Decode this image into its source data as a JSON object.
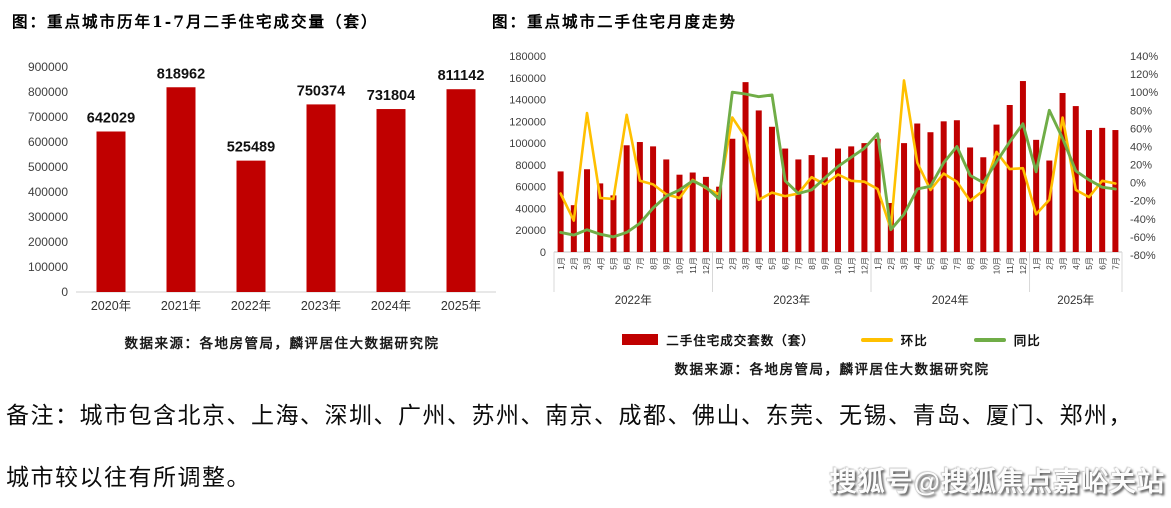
{
  "left_chart": {
    "title": "图：重点城市历年1-7月二手住宅成交量（套）",
    "source": "数据来源：各地房管局，麟评居住大数据研究院"
  },
  "right_chart": {
    "title": "图：重点城市二手住宅月度走势",
    "source": "数据来源：各地房管局，麟评居住大数据研究院",
    "legend": [
      {
        "label": "二手住宅成交套数（套）",
        "color": "#C00000",
        "type": "bar"
      },
      {
        "label": "环比",
        "color": "#FFC000",
        "type": "line"
      },
      {
        "label": "同比",
        "color": "#70AD47",
        "type": "line"
      }
    ]
  },
  "note": {
    "line1": "备注：城市包含北京、上海、深圳、广州、苏州、南京、成都、佛山、东莞、无锡、青岛、厦门、郑州，",
    "line2": "城市较以往有所调整。"
  },
  "watermark": "搜狐号@搜狐焦点嘉峪关站",
  "colors": {
    "bar_red": "#C00000",
    "mom_yellow": "#FFC000",
    "yoy_green": "#70AD47"
  },
  "chart_data": [
    {
      "type": "bar",
      "title": "图：重点城市历年1-7月二手住宅成交量（套）",
      "categories": [
        "2020年",
        "2021年",
        "2022年",
        "2023年",
        "2024年",
        "2025年"
      ],
      "values": [
        642029,
        818962,
        525489,
        750374,
        731804,
        811142
      ],
      "data_labels": [
        "642029",
        "818962",
        "525489",
        "750374",
        "731804",
        "811142"
      ],
      "ylim": [
        0,
        900000
      ],
      "ytick_step": 100000,
      "grid": false,
      "bar_color": "#C00000",
      "source": "数据来源：各地房管局，麟评居住大数据研究院"
    },
    {
      "type": "bar",
      "subtype": "bar+line-combo",
      "title": "图：重点城市二手住宅月度走势",
      "grid": false,
      "legend_position": "bottom",
      "left_axis": {
        "min": 0,
        "max": 180000,
        "step": 20000
      },
      "right_axis": {
        "min": -80,
        "max": 140,
        "step": 20,
        "suffix": "%"
      },
      "year_groups": [
        {
          "label": "2022年",
          "count": 12
        },
        {
          "label": "2023年",
          "count": 12
        },
        {
          "label": "2024年",
          "count": 12
        },
        {
          "label": "2025年",
          "count": 7
        }
      ],
      "month_labels": [
        "1月",
        "2月",
        "3月",
        "4月",
        "5月",
        "6月",
        "7月",
        "8月",
        "9月",
        "10月",
        "11月",
        "12月",
        "1月",
        "2月",
        "3月",
        "4月",
        "5月",
        "6月",
        "7月",
        "8月",
        "9月",
        "10月",
        "11月",
        "12月",
        "1月",
        "2月",
        "3月",
        "4月",
        "5月",
        "6月",
        "7月",
        "8月",
        "9月",
        "10月",
        "11月",
        "12月",
        "1月",
        "2月",
        "3月",
        "4月",
        "5月",
        "6月",
        "7月"
      ],
      "series": [
        {
          "name": "二手住宅成交套数（套）",
          "type": "bar",
          "axis": "left",
          "color": "#C00000",
          "values": [
            74000,
            43000,
            76000,
            63000,
            52000,
            98000,
            101000,
            97000,
            85000,
            71000,
            73000,
            69000,
            60000,
            104000,
            156000,
            130000,
            115000,
            95000,
            85000,
            89000,
            87000,
            95000,
            97000,
            100000,
            104000,
            45000,
            100000,
            118000,
            110000,
            120000,
            121000,
            96000,
            87000,
            117000,
            135000,
            157000,
            103000,
            84000,
            146000,
            134000,
            112000,
            114000,
            112000
          ]
        },
        {
          "name": "环比",
          "type": "line",
          "axis": "right",
          "color": "#FFC000",
          "values": [
            -12,
            -42,
            77,
            -17,
            -18,
            75,
            2,
            -2,
            -13,
            -17,
            3,
            -6,
            -13,
            72,
            50,
            -19,
            -11,
            -15,
            -12,
            6,
            -2,
            9,
            2,
            1,
            -7,
            -51,
            113,
            22,
            -8,
            10,
            1,
            -20,
            -9,
            34,
            15,
            16,
            -35,
            -19,
            72,
            -8,
            -16,
            2,
            -1
          ]
        },
        {
          "name": "同比",
          "type": "line",
          "axis": "right",
          "color": "#70AD47",
          "values": [
            -55,
            -58,
            -52,
            -57,
            -60,
            -55,
            -45,
            -28,
            -15,
            -8,
            2,
            -5,
            -18,
            100,
            98,
            95,
            97,
            2,
            -12,
            -8,
            5,
            18,
            28,
            38,
            54,
            -52,
            -35,
            -7,
            -4,
            22,
            40,
            8,
            0,
            23,
            45,
            65,
            12,
            80,
            49,
            13,
            3,
            -5,
            -7
          ]
        }
      ],
      "source": "数据来源：各地房管局，麟评居住大数据研究院"
    }
  ]
}
